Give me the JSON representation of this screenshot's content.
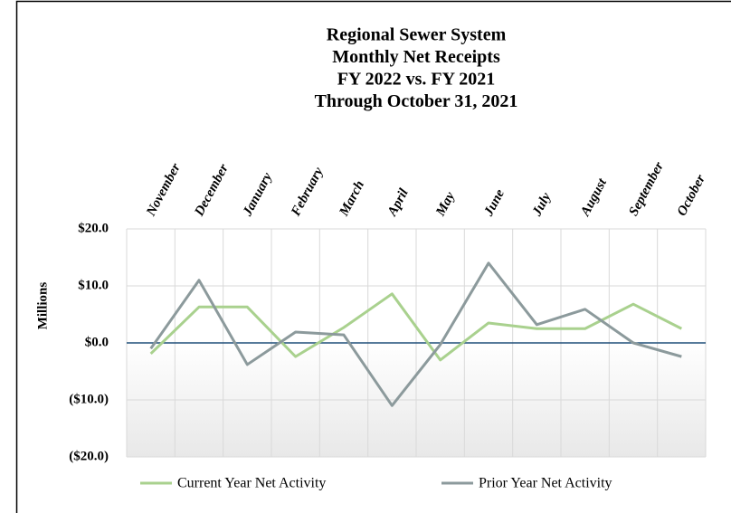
{
  "chart_data": {
    "type": "line",
    "title": [
      "Regional Sewer System",
      "Monthly Net Receipts",
      "FY 2022 vs. FY 2021",
      "Through October 31, 2021"
    ],
    "y_axis_label": "Millions",
    "categories": [
      "November",
      "December",
      "January",
      "February",
      "March",
      "April",
      "May",
      "June",
      "July",
      "August",
      "September",
      "October"
    ],
    "series": [
      {
        "name": "Current Year Net Activity",
        "color": "#a9d18e",
        "values": [
          -1.9,
          6.3,
          6.3,
          -2.4,
          2.7,
          8.6,
          -3.0,
          3.5,
          2.5,
          2.5,
          6.8,
          2.5
        ]
      },
      {
        "name": "Prior Year Net Activity",
        "color": "#8c9a9c",
        "values": [
          -1.0,
          11.0,
          -3.8,
          1.9,
          1.4,
          -11.0,
          -0.3,
          14.0,
          3.2,
          5.9,
          0.0,
          -2.4
        ]
      }
    ],
    "ylim": [
      -20,
      20
    ],
    "yticks": [
      {
        "value": 20,
        "label": "$20.0"
      },
      {
        "value": 10,
        "label": "$10.0"
      },
      {
        "value": 0,
        "label": "$0.0"
      },
      {
        "value": -10,
        "label": "($10.0)"
      },
      {
        "value": -20,
        "label": "($20.0)"
      }
    ],
    "grid": true,
    "legend": "bottom"
  }
}
